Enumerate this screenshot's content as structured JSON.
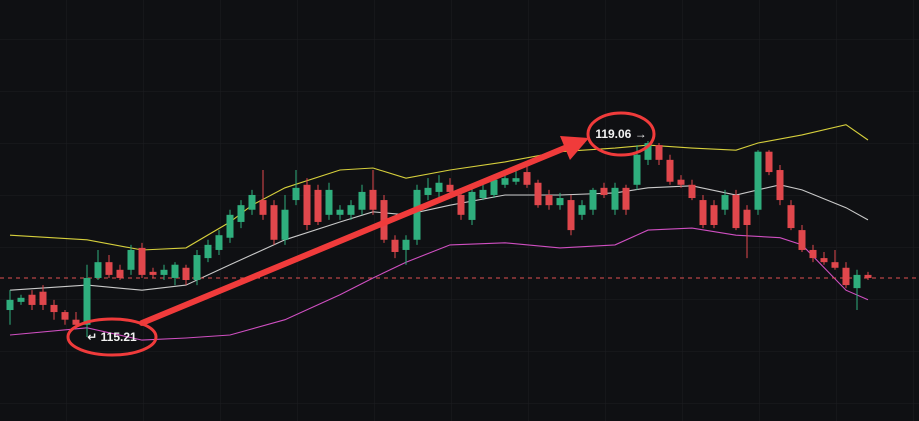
{
  "chart_data": {
    "type": "candlestick",
    "ylim": [
      113.56,
      121.83
    ],
    "up_color": "#2fae7d",
    "down_color": "#e0474c",
    "open": [
      115.74,
      115.9,
      116.04,
      116.1,
      115.84,
      115.7,
      115.55,
      115.45,
      116.37,
      116.68,
      116.53,
      116.53,
      116.96,
      116.49,
      116.43,
      116.37,
      116.57,
      116.33,
      116.76,
      116.92,
      117.16,
      117.47,
      117.71,
      117.9,
      117.8,
      117.12,
      117.9,
      118.2,
      118.1,
      117.61,
      117.61,
      117.61,
      117.71,
      118.1,
      117.9,
      117.12,
      116.92,
      117.12,
      118.0,
      118.06,
      118.2,
      118.0,
      117.51,
      117.94,
      118.0,
      118.2,
      118.26,
      118.45,
      118.24,
      118.0,
      117.8,
      117.9,
      117.61,
      117.71,
      118.14,
      117.71,
      118.14,
      118.2,
      118.69,
      118.98,
      118.69,
      118.3,
      118.2,
      117.9,
      117.8,
      117.71,
      118.0,
      117.71,
      117.71,
      118.85,
      118.49,
      117.8,
      117.31,
      116.92,
      116.76,
      116.68,
      116.57,
      116.17,
      116.43
    ],
    "high": [
      116.13,
      116.04,
      116.13,
      116.23,
      115.94,
      115.74,
      115.7,
      116.63,
      116.92,
      116.82,
      116.63,
      117.02,
      117.06,
      116.57,
      116.63,
      116.68,
      116.63,
      116.92,
      117.12,
      117.31,
      117.71,
      117.9,
      118.1,
      118.49,
      117.9,
      118.0,
      118.49,
      118.33,
      118.2,
      118.24,
      117.8,
      117.9,
      118.2,
      118.49,
      118.0,
      117.21,
      117.21,
      118.2,
      118.33,
      118.39,
      118.33,
      118.1,
      118.14,
      118.2,
      118.39,
      118.45,
      118.49,
      118.59,
      118.3,
      118.1,
      118.04,
      118.0,
      117.9,
      118.14,
      118.24,
      118.24,
      118.2,
      118.98,
      119.06,
      119.02,
      118.79,
      118.39,
      118.3,
      118.0,
      117.9,
      118.1,
      118.1,
      117.8,
      118.88,
      118.88,
      118.59,
      117.9,
      117.41,
      117.02,
      116.88,
      116.92,
      116.68,
      116.53,
      116.49
    ],
    "low": [
      115.45,
      115.84,
      115.74,
      115.74,
      115.55,
      115.45,
      115.39,
      115.21,
      116.33,
      116.37,
      116.33,
      116.43,
      116.37,
      116.37,
      116.33,
      116.23,
      116.23,
      116.23,
      116.68,
      116.82,
      117.06,
      117.35,
      117.61,
      117.51,
      117.02,
      117.02,
      117.8,
      117.31,
      117.41,
      117.51,
      117.51,
      117.51,
      117.61,
      117.61,
      117.06,
      116.76,
      116.63,
      117.02,
      117.9,
      117.94,
      117.94,
      117.51,
      117.41,
      117.9,
      117.94,
      118.14,
      118.2,
      118.14,
      117.75,
      117.71,
      117.71,
      117.21,
      117.51,
      117.61,
      117.94,
      117.61,
      117.61,
      118.1,
      118.59,
      118.59,
      118.2,
      118.14,
      117.9,
      117.35,
      117.35,
      117.61,
      117.31,
      116.76,
      117.61,
      118.39,
      117.8,
      117.31,
      116.88,
      116.68,
      116.63,
      116.53,
      116.17,
      115.74,
      116.33
    ],
    "close": [
      115.94,
      115.98,
      115.84,
      115.84,
      115.7,
      115.55,
      115.45,
      116.37,
      116.68,
      116.43,
      116.37,
      116.92,
      116.43,
      116.43,
      116.53,
      116.63,
      116.33,
      116.82,
      117.02,
      117.21,
      117.61,
      117.8,
      118.0,
      117.61,
      117.12,
      117.71,
      118.14,
      117.41,
      117.47,
      118.1,
      117.71,
      117.8,
      118.06,
      117.71,
      117.12,
      116.88,
      117.12,
      118.1,
      118.14,
      118.24,
      118.06,
      117.61,
      118.06,
      118.1,
      118.3,
      118.33,
      118.33,
      118.2,
      117.8,
      117.8,
      117.94,
      117.31,
      117.8,
      118.1,
      118.0,
      118.14,
      117.71,
      118.79,
      119.02,
      118.69,
      118.26,
      118.2,
      117.94,
      117.41,
      117.41,
      118.0,
      117.35,
      117.41,
      118.85,
      118.45,
      117.9,
      117.35,
      116.92,
      116.76,
      116.68,
      116.57,
      116.23,
      116.43,
      116.37
    ],
    "bands": [
      {
        "color": "#d6cf3c",
        "x": [
          0,
          7,
          12,
          16,
          20,
          22,
          25,
          30,
          33,
          36,
          40,
          45,
          50,
          55,
          58,
          62,
          66,
          68,
          72,
          76,
          78
        ],
        "values": [
          117.21,
          117.12,
          116.92,
          116.96,
          117.47,
          117.8,
          118.14,
          118.49,
          118.53,
          118.33,
          118.49,
          118.65,
          118.85,
          118.92,
          118.98,
          118.92,
          118.88,
          119.02,
          119.18,
          119.38,
          119.08
        ]
      },
      {
        "color": "#c9c9c9",
        "x": [
          0,
          7,
          12,
          16,
          20,
          25,
          30,
          33,
          36,
          40,
          45,
          50,
          55,
          58,
          62,
          66,
          70,
          72,
          76,
          78
        ],
        "values": [
          116.13,
          116.23,
          116.13,
          116.23,
          116.63,
          117.12,
          117.47,
          117.67,
          117.61,
          117.8,
          118.0,
          118.0,
          118.04,
          118.14,
          118.18,
          118.0,
          118.2,
          118.1,
          117.75,
          117.51
        ]
      },
      {
        "color": "#cf4fc1",
        "x": [
          0,
          7,
          12,
          16,
          20,
          25,
          30,
          33,
          36,
          40,
          45,
          50,
          55,
          58,
          62,
          66,
          70,
          72,
          76,
          78
        ],
        "values": [
          115.25,
          115.39,
          115.15,
          115.19,
          115.25,
          115.55,
          116.04,
          116.37,
          116.68,
          117.02,
          117.06,
          116.96,
          117.02,
          117.31,
          117.35,
          117.21,
          117.16,
          117.02,
          116.13,
          115.94
        ]
      }
    ],
    "annotations": [
      {
        "index": 7,
        "value": 115.21,
        "label": "↵ 115.21"
      },
      {
        "index": 58,
        "value": 119.06,
        "label": "119.06 →"
      }
    ]
  }
}
